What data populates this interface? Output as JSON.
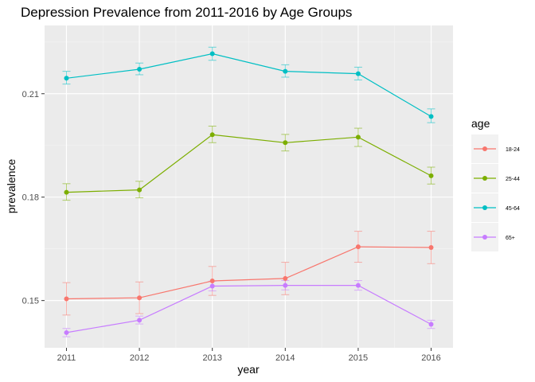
{
  "chart_data": {
    "type": "line",
    "title": "Depression Prevalence from 2011-2016 by Age Groups",
    "xlabel": "year",
    "ylabel": "prevalence",
    "x": [
      2011,
      2012,
      2013,
      2014,
      2015,
      2016
    ],
    "x_tick_labels": [
      "2011",
      "2012",
      "2013",
      "2014",
      "2015",
      "2016"
    ],
    "y_ticks": [
      0.15,
      0.18,
      0.21
    ],
    "y_tick_labels": [
      "0.15",
      "0.18",
      "0.21"
    ],
    "xlim": [
      2010.7,
      2016.3
    ],
    "ylim": [
      0.1363,
      0.2298
    ],
    "grid": true,
    "legend_title": "age",
    "legend_position": "right",
    "error_bars": true,
    "series": [
      {
        "name": "18-24",
        "color": "#F8766D",
        "values": [
          0.1505,
          0.1508,
          0.1557,
          0.1564,
          0.1656,
          0.1654
        ],
        "lower": [
          0.1458,
          0.1462,
          0.1515,
          0.1517,
          0.1611,
          0.1607
        ],
        "upper": [
          0.1552,
          0.1554,
          0.1599,
          0.1611,
          0.1701,
          0.1701
        ]
      },
      {
        "name": "25-44",
        "color": "#7CAE00",
        "values": [
          0.1814,
          0.1821,
          0.1981,
          0.1958,
          0.1974,
          0.1862
        ],
        "lower": [
          0.1791,
          0.1798,
          0.1958,
          0.1934,
          0.1947,
          0.1838
        ],
        "upper": [
          0.1839,
          0.1846,
          0.2006,
          0.1982,
          0.2,
          0.1887
        ]
      },
      {
        "name": "45-64",
        "color": "#00BFC4",
        "values": [
          0.2145,
          0.2171,
          0.2216,
          0.2165,
          0.2158,
          0.2034
        ],
        "lower": [
          0.2128,
          0.2155,
          0.2197,
          0.2148,
          0.214,
          0.2016
        ],
        "upper": [
          0.2165,
          0.2189,
          0.2235,
          0.2184,
          0.2177,
          0.2056
        ]
      },
      {
        "name": "65+",
        "color": "#C77CFF",
        "values": [
          0.1407,
          0.1443,
          0.1542,
          0.1544,
          0.1544,
          0.1431
        ],
        "lower": [
          0.1395,
          0.1432,
          0.1528,
          0.1531,
          0.153,
          0.1419
        ],
        "upper": [
          0.1419,
          0.1455,
          0.1556,
          0.1558,
          0.1558,
          0.1443
        ]
      }
    ]
  }
}
